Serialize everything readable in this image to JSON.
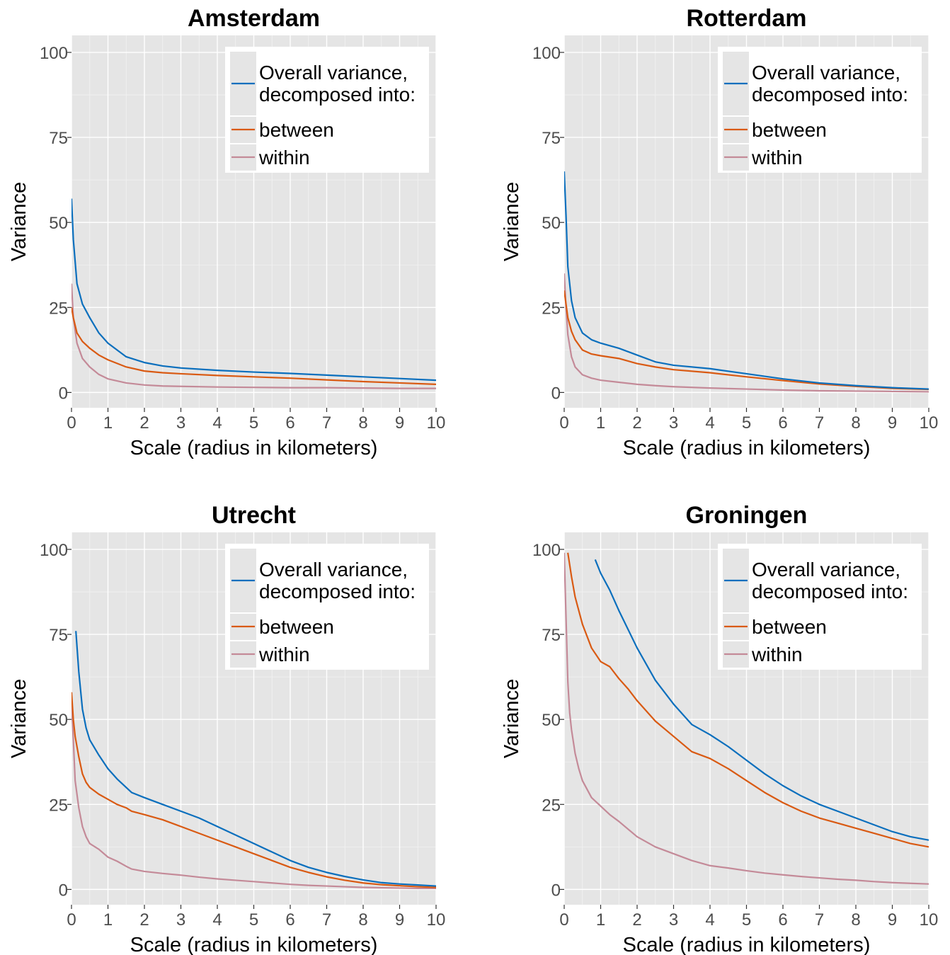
{
  "colors": {
    "overall": "#0b6fbd",
    "between": "#d95a13",
    "within": "#c48a98",
    "panel_bg": "#e5e5e5",
    "grid": "#ffffff"
  },
  "chart_data": [
    {
      "type": "line",
      "title": "Amsterdam",
      "xlabel": "Scale (radius in kilometers)",
      "ylabel": "Variance",
      "xlim": [
        0,
        10
      ],
      "ylim": [
        0,
        100
      ],
      "xticks": [
        "0",
        "1",
        "2",
        "3",
        "4",
        "5",
        "6",
        "7",
        "8",
        "9",
        "10"
      ],
      "yticks": [
        "0",
        "25",
        "50",
        "75",
        "100"
      ],
      "legend": {
        "placement": "top-right",
        "title_lines": [
          "Overall variance,",
          "decomposed into:"
        ],
        "entries": [
          "between",
          "within"
        ]
      },
      "series": [
        {
          "key": "overall",
          "x": [
            0,
            0.05,
            0.15,
            0.3,
            0.5,
            0.75,
            1,
            1.5,
            2,
            2.5,
            3,
            4,
            5,
            6,
            7,
            8,
            9,
            10
          ],
          "y": [
            57,
            45,
            32,
            26,
            22,
            17.5,
            14.5,
            10.5,
            8.8,
            7.8,
            7.2,
            6.5,
            6,
            5.6,
            5.1,
            4.6,
            4.1,
            3.6
          ]
        },
        {
          "key": "between",
          "x": [
            0,
            0.05,
            0.15,
            0.3,
            0.5,
            0.75,
            1,
            1.5,
            2,
            2.5,
            3,
            4,
            5,
            6,
            7,
            8,
            9,
            10
          ],
          "y": [
            25,
            22,
            17.5,
            15,
            13,
            11,
            9.6,
            7.5,
            6.3,
            5.8,
            5.5,
            5,
            4.6,
            4.2,
            3.7,
            3.2,
            2.8,
            2.4
          ]
        },
        {
          "key": "within",
          "x": [
            0,
            0.05,
            0.15,
            0.3,
            0.5,
            0.75,
            1,
            1.5,
            2,
            2.5,
            3,
            4,
            5,
            6,
            7,
            8,
            9,
            10
          ],
          "y": [
            32,
            22,
            14.5,
            10,
            7.5,
            5.3,
            4,
            2.8,
            2.2,
            1.9,
            1.8,
            1.6,
            1.5,
            1.4,
            1.4,
            1.3,
            1.2,
            1.2
          ]
        }
      ]
    },
    {
      "type": "line",
      "title": "Rotterdam",
      "xlabel": "Scale (radius in kilometers)",
      "ylabel": "Variance",
      "xlim": [
        0,
        10
      ],
      "ylim": [
        0,
        100
      ],
      "xticks": [
        "0",
        "1",
        "2",
        "3",
        "4",
        "5",
        "6",
        "7",
        "8",
        "9",
        "10"
      ],
      "yticks": [
        "0",
        "25",
        "50",
        "75",
        "100"
      ],
      "legend": {
        "placement": "top-right",
        "title_lines": [
          "Overall variance,",
          "decomposed into:"
        ],
        "entries": [
          "between",
          "within"
        ]
      },
      "series": [
        {
          "key": "overall",
          "x": [
            0,
            0.05,
            0.1,
            0.2,
            0.3,
            0.5,
            0.75,
            1,
            1.5,
            2,
            2.5,
            3,
            4,
            5,
            6,
            7,
            8,
            9,
            10
          ],
          "y": [
            65,
            52,
            37,
            27,
            22,
            17.5,
            15.5,
            14.5,
            13,
            11,
            9,
            8,
            7,
            5.5,
            4,
            2.8,
            2,
            1.4,
            1
          ]
        },
        {
          "key": "between",
          "x": [
            0,
            0.05,
            0.1,
            0.2,
            0.3,
            0.5,
            0.75,
            1,
            1.5,
            2,
            2.5,
            3,
            4,
            5,
            6,
            7,
            8,
            9,
            10
          ],
          "y": [
            30,
            26,
            22,
            18,
            15.5,
            12.5,
            11.3,
            10.8,
            10,
            8.5,
            7.5,
            6.7,
            5.8,
            4.6,
            3.5,
            2.5,
            1.8,
            1.2,
            0.9
          ]
        },
        {
          "key": "within",
          "x": [
            0,
            0.05,
            0.1,
            0.2,
            0.3,
            0.5,
            0.75,
            1,
            1.5,
            2,
            2.5,
            3,
            4,
            5,
            6,
            7,
            8,
            9,
            10
          ],
          "y": [
            35,
            25,
            17,
            10.5,
            7.5,
            5.2,
            4.2,
            3.6,
            3,
            2.4,
            2,
            1.7,
            1.3,
            1,
            0.7,
            0.5,
            0.4,
            0.3,
            0.2
          ]
        }
      ]
    },
    {
      "type": "line",
      "title": "Utrecht",
      "xlabel": "Scale (radius in kilometers)",
      "ylabel": "Variance",
      "xlim": [
        0,
        10
      ],
      "ylim": [
        0,
        100
      ],
      "xticks": [
        "0",
        "1",
        "2",
        "3",
        "4",
        "5",
        "6",
        "7",
        "8",
        "9",
        "10"
      ],
      "yticks": [
        "0",
        "25",
        "50",
        "75",
        "100"
      ],
      "legend": {
        "placement": "top-right",
        "title_lines": [
          "Overall variance,",
          "decomposed into:"
        ],
        "entries": [
          "between",
          "within"
        ]
      },
      "series": [
        {
          "key": "overall",
          "x": [
            0.12,
            0.2,
            0.3,
            0.4,
            0.5,
            0.75,
            1,
            1.25,
            1.5,
            1.65,
            2,
            2.5,
            3,
            3.5,
            4,
            4.5,
            5,
            5.5,
            6,
            6.5,
            7,
            7.5,
            8,
            8.5,
            9,
            9.5,
            10
          ],
          "y": [
            76,
            64,
            53,
            47.5,
            44,
            39.5,
            35.5,
            32.5,
            30,
            28.5,
            27,
            25,
            23,
            21,
            18.5,
            16,
            13.5,
            11,
            8.5,
            6.5,
            5,
            3.8,
            2.8,
            2,
            1.6,
            1.3,
            1
          ]
        },
        {
          "key": "between",
          "x": [
            0,
            0.05,
            0.1,
            0.2,
            0.3,
            0.4,
            0.5,
            0.75,
            1,
            1.25,
            1.5,
            1.65,
            2,
            2.5,
            3,
            3.5,
            4,
            4.5,
            5,
            5.5,
            6,
            6.5,
            7,
            7.5,
            8,
            8.5,
            9,
            9.5,
            10
          ],
          "y": [
            58,
            50,
            45,
            39,
            34,
            31.5,
            30,
            28,
            26.5,
            25,
            24,
            23,
            22,
            20.5,
            18.5,
            16.5,
            14.5,
            12.5,
            10.5,
            8.5,
            6.5,
            5,
            3.7,
            2.7,
            1.9,
            1.4,
            1.1,
            0.8,
            0.6
          ]
        },
        {
          "key": "within",
          "x": [
            0,
            0.05,
            0.1,
            0.2,
            0.3,
            0.4,
            0.5,
            0.75,
            1,
            1.25,
            1.5,
            1.65,
            2,
            2.5,
            3,
            3.5,
            4,
            4.5,
            5,
            5.5,
            6,
            6.5,
            7,
            7.5,
            8,
            8.5,
            9,
            9.5,
            10
          ],
          "y": [
            55,
            44,
            32,
            24,
            18.5,
            15.5,
            13.5,
            11.8,
            9.5,
            8.3,
            6.8,
            6,
            5.3,
            4.7,
            4.2,
            3.6,
            3.1,
            2.7,
            2.3,
            1.9,
            1.5,
            1.2,
            1,
            0.8,
            0.6,
            0.5,
            0.4,
            0.3,
            0.3
          ]
        }
      ]
    },
    {
      "type": "line",
      "title": "Groningen",
      "xlabel": "Scale (radius in kilometers)",
      "ylabel": "Variance",
      "xlim": [
        0,
        10
      ],
      "ylim": [
        0,
        100
      ],
      "xticks": [
        "0",
        "1",
        "2",
        "3",
        "4",
        "5",
        "6",
        "7",
        "8",
        "9",
        "10"
      ],
      "yticks": [
        "0",
        "25",
        "50",
        "75",
        "100"
      ],
      "legend": {
        "placement": "top-right",
        "title_lines": [
          "Overall variance,",
          "decomposed into:"
        ],
        "entries": [
          "between",
          "within"
        ]
      },
      "series": [
        {
          "key": "overall",
          "x": [
            0.85,
            1,
            1.25,
            1.5,
            2,
            2.5,
            3,
            3.5,
            4,
            4.5,
            5,
            5.5,
            6,
            6.5,
            7,
            7.5,
            8,
            8.5,
            9,
            9.5,
            10
          ],
          "y": [
            97,
            93,
            88,
            82,
            71,
            61.5,
            54.5,
            48.5,
            45.5,
            42,
            38,
            34,
            30.5,
            27.5,
            25,
            23,
            21,
            19,
            17,
            15.5,
            14.5
          ]
        },
        {
          "key": "between",
          "x": [
            0.1,
            0.2,
            0.3,
            0.4,
            0.5,
            0.75,
            1,
            1.25,
            1.5,
            1.75,
            2,
            2.5,
            3,
            3.5,
            4,
            4.5,
            5,
            5.5,
            6,
            6.5,
            7,
            7.5,
            8,
            8.5,
            9,
            9.5,
            10
          ],
          "y": [
            99,
            92,
            86,
            82,
            78,
            71,
            67,
            65.5,
            62,
            59,
            55.5,
            49.5,
            45,
            40.5,
            38.5,
            35.5,
            32,
            28.5,
            25.5,
            23,
            21,
            19.5,
            18,
            16.5,
            15,
            13.5,
            12.5
          ]
        },
        {
          "key": "within",
          "x": [
            0,
            0.05,
            0.1,
            0.15,
            0.2,
            0.3,
            0.4,
            0.5,
            0.75,
            1,
            1.25,
            1.5,
            2,
            2.5,
            3,
            3.5,
            4,
            4.5,
            5,
            5.5,
            6,
            6.5,
            7,
            7.5,
            8,
            8.5,
            9,
            9.5,
            10
          ],
          "y": [
            99,
            80,
            61,
            52,
            47,
            40,
            35.5,
            32,
            27,
            24.5,
            22,
            20,
            15.5,
            12.5,
            10.5,
            8.5,
            7,
            6.3,
            5.5,
            4.8,
            4.3,
            3.8,
            3.4,
            3,
            2.7,
            2.3,
            2,
            1.8,
            1.6
          ]
        }
      ]
    }
  ]
}
